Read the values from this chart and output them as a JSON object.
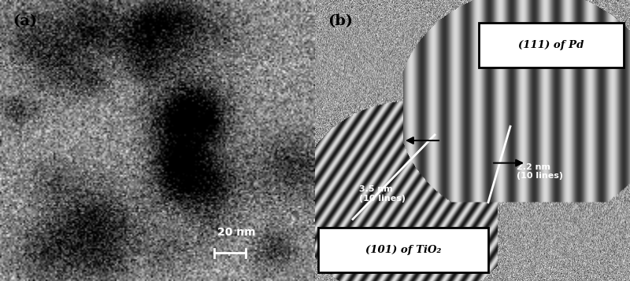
{
  "fig_width": 8.0,
  "fig_height": 3.58,
  "dpi": 100,
  "panel_a": {
    "label": "(a)",
    "scale_bar_text": "20 nm"
  },
  "panel_b": {
    "label": "(b)",
    "annotation1_text": "3.5 nm\n(10 lines)",
    "annotation2_text": "2.2 nm\n(10 lines)",
    "box1_text": "(111) of Pd",
    "box2_text": "(101) of TiO₂"
  }
}
